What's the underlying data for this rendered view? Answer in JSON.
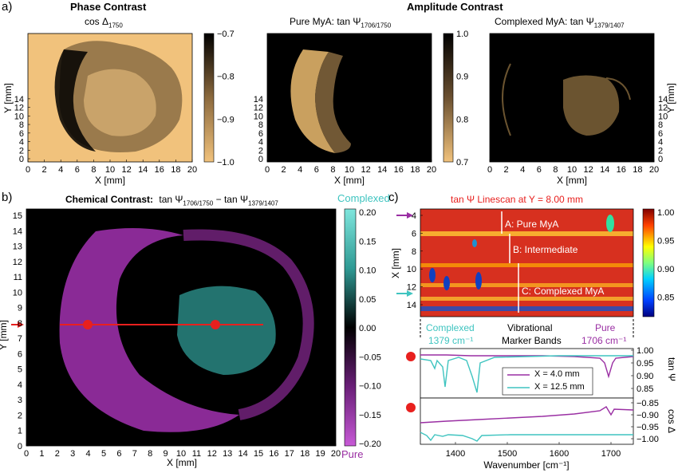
{
  "panel_labels": {
    "a": "a)",
    "b": "b)",
    "c": "c)"
  },
  "headers": {
    "phase": "Phase Contrast",
    "amplitude": "Amplitude Contrast"
  },
  "panel_a": {
    "maps": [
      {
        "title": "cos Δ",
        "title_sub": "1750",
        "colorbar_ticks": [
          "−0.7",
          "−0.8",
          "−0.9",
          "−1.0"
        ]
      },
      {
        "title": "Pure MyA: tan Ψ",
        "title_sub": "1706/1750",
        "colorbar_ticks": [
          "1.0",
          "0.9",
          "0.8",
          "0.7"
        ]
      },
      {
        "title": "Complexed MyA: tan Ψ",
        "title_sub": "1379/1407"
      }
    ],
    "x_ticks": [
      "0",
      "2",
      "4",
      "6",
      "8",
      "10",
      "12",
      "14",
      "16",
      "18",
      "20"
    ],
    "y_ticks": [
      "0",
      "2",
      "4",
      "6",
      "8",
      "10",
      "12",
      "14"
    ],
    "xlabel": "X [mm]",
    "ylabel": "Y [mm]"
  },
  "panel_b": {
    "title_prefix": "Chemical Contrast:",
    "t1": "tan Ψ",
    "t1_sub": "1706/1750",
    "minus": "−",
    "t2": "tan Ψ",
    "t2_sub": "1379/1407",
    "x_ticks": [
      "0",
      "1",
      "2",
      "3",
      "4",
      "5",
      "6",
      "7",
      "8",
      "9",
      "10",
      "11",
      "12",
      "13",
      "14",
      "15",
      "16",
      "17",
      "18",
      "19",
      "20"
    ],
    "y_ticks": [
      "0",
      "1",
      "2",
      "3",
      "4",
      "5",
      "6",
      "7",
      "8",
      "9",
      "10",
      "11",
      "12",
      "13",
      "14",
      "15"
    ],
    "xlabel": "X [mm]",
    "ylabel": "Y [mm]",
    "colorbar_top": "Complexed",
    "colorbar_bottom": "Pure",
    "colorbar_ticks": [
      "0.20",
      "0.15",
      "0.10",
      "0.05",
      "0.00",
      "−0.05",
      "−0.10",
      "−0.15",
      "−0.20"
    ]
  },
  "panel_c": {
    "title": "tan Ψ Linescan at Y = 8.00 mm",
    "heatmap_y_ticks": [
      "4",
      "6",
      "8",
      "10",
      "12",
      "14"
    ],
    "heatmap_ylabel": "X [mm]",
    "regions": [
      "A: Pure MyA",
      "B: Intermediate",
      "C: Complexed MyA"
    ],
    "colorbar_ticks": [
      "1.00",
      "0.95",
      "0.90",
      "0.85"
    ],
    "marker_left": "Complexed",
    "marker_left_value": "1379 cm⁻¹",
    "marker_center_1": "Vibrational",
    "marker_center_2": "Marker Bands",
    "marker_right": "Pure",
    "marker_right_value": "1706 cm⁻¹",
    "tan_ticks": [
      "1.00",
      "0.95",
      "0.90",
      "0.85"
    ],
    "tan_ylabel": "tan Ψ",
    "cos_ticks": [
      "−0.85",
      "−0.90",
      "−0.95",
      "−1.00"
    ],
    "cos_ylabel": "cos Δ",
    "legend": [
      "X =   4.0 mm",
      "X = 12.5 mm"
    ],
    "x_ticks": [
      "1400",
      "1500",
      "1600",
      "1700"
    ],
    "xlabel": "Wavenumber [cm⁻¹]",
    "colors": {
      "pure": "#9a2fa3",
      "complexed": "#3fc4c0",
      "title": "#e8201e"
    }
  }
}
